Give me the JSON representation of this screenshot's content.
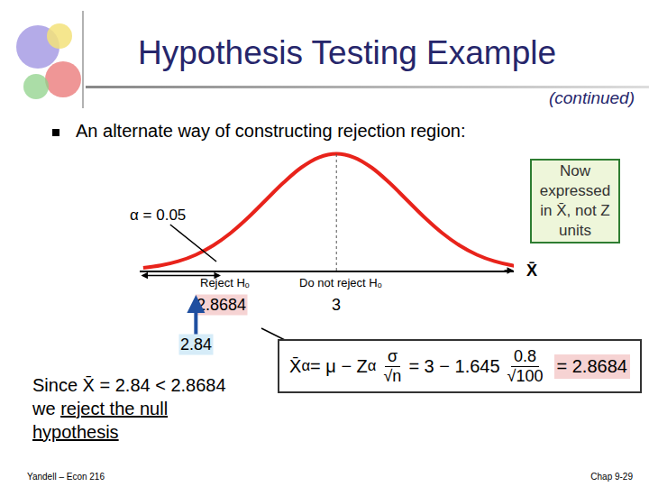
{
  "slide": {
    "bullet": "An alternate way of constructing rejection region:",
    "note_box": "Now expressed in X̄, not Z units",
    "formula": {
      "lhs": "X̄",
      "lhs_sub": "α",
      "mid": "= μ − Z",
      "mid_sub": "α",
      "frac1_num": "σ",
      "frac1_den": "√n",
      "rhs": "= 3 − 1.645",
      "frac2_num": "0.8",
      "frac2_den": "√100",
      "result": "= 2.8684"
    },
    "conclusion": {
      "line1": "Since X̄ = 2.84 < 2.8684",
      "line2_prefix": "we",
      "underlined1": "reject the null",
      "underlined2": "hypothesis"
    },
    "footer_left": "Yandell – Econ 216",
    "footer_right": "Chap 9-29"
  },
  "chart_data": {
    "type": "line",
    "title": "Hypothesis Testing Example",
    "subtitle": "(continued)",
    "x": [
      2.78,
      2.8,
      2.82,
      2.84,
      2.86,
      2.88,
      2.9,
      2.92,
      2.94,
      2.96,
      2.98,
      3.0,
      3.02,
      3.04,
      3.06,
      3.08,
      3.1,
      3.12,
      3.14,
      3.16,
      3.18,
      3.2,
      3.22
    ],
    "values": [
      0.114,
      0.219,
      0.397,
      0.675,
      1.079,
      1.619,
      2.283,
      3.025,
      3.764,
      4.401,
      4.833,
      4.987,
      4.833,
      4.401,
      3.764,
      3.025,
      2.283,
      1.619,
      1.079,
      0.675,
      0.397,
      0.219,
      0.114
    ],
    "color": "#e8231b",
    "xlim": [
      2.776,
      3.202
    ],
    "ylim": [
      0,
      5.2
    ],
    "tick_labels": false,
    "grid": false,
    "x_label": "X̄",
    "alpha_label": "α = 0.05",
    "reject_label": "Reject Hₒ",
    "accept_label": "Do not reject Hₒ",
    "critical": {
      "value": 2.8684,
      "label": "2.8684"
    },
    "mean": {
      "value": 3,
      "label": "3"
    },
    "sample_mean": {
      "value": 2.84,
      "label": "2.84"
    }
  }
}
